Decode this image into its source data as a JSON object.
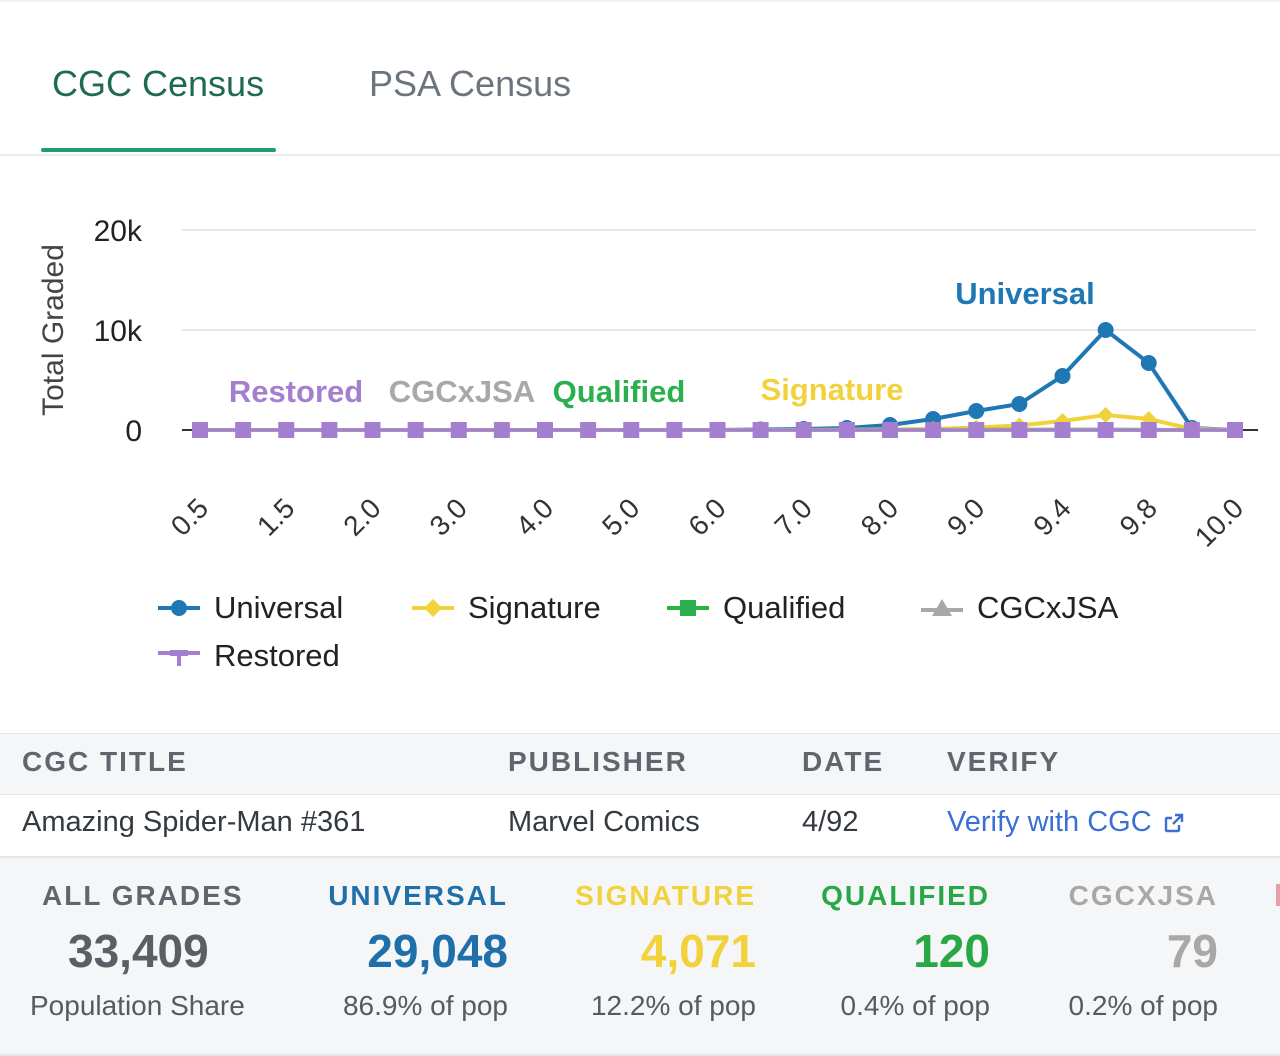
{
  "tabs": [
    {
      "label": "CGC Census",
      "active": true
    },
    {
      "label": "PSA Census",
      "active": false
    }
  ],
  "chart_data": {
    "type": "line",
    "title": "",
    "xlabel": "",
    "ylabel": "Total Graded",
    "ylim": [
      0,
      20000
    ],
    "yticks": [
      {
        "value": 0,
        "label": "0"
      },
      {
        "value": 10000,
        "label": "10k"
      },
      {
        "value": 20000,
        "label": "20k"
      }
    ],
    "x": [
      "0.5",
      "1.0",
      "1.5",
      "1.8",
      "2.0",
      "2.5",
      "3.0",
      "3.5",
      "4.0",
      "4.5",
      "5.0",
      "5.5",
      "6.0",
      "6.5",
      "7.0",
      "7.5",
      "8.0",
      "8.5",
      "9.0",
      "9.2",
      "9.4",
      "9.6",
      "9.8",
      "9.9",
      "10.0"
    ],
    "xtick_labels": [
      "0.5",
      "1.5",
      "2.0",
      "3.0",
      "4.0",
      "5.0",
      "6.0",
      "7.0",
      "8.0",
      "9.0",
      "9.4",
      "9.8",
      "10.0"
    ],
    "grid": true,
    "legend_position": "bottom",
    "series": [
      {
        "name": "Universal",
        "color": "#1f77b4",
        "marker": "circle",
        "values": [
          0,
          0,
          0,
          0,
          0,
          0,
          0,
          0,
          0,
          0,
          0,
          0,
          0,
          50,
          100,
          200,
          500,
          1100,
          1900,
          2600,
          5400,
          10000,
          6700,
          200,
          0
        ],
        "label_at": 21
      },
      {
        "name": "Signature",
        "color": "#f2d23c",
        "marker": "diamond",
        "values": [
          0,
          0,
          0,
          0,
          0,
          0,
          0,
          0,
          0,
          0,
          0,
          0,
          0,
          0,
          10,
          20,
          50,
          100,
          250,
          450,
          900,
          1500,
          1100,
          100,
          0
        ],
        "label_at": 15
      },
      {
        "name": "Qualified",
        "color": "#2ab04c",
        "marker": "square",
        "values": [
          0,
          0,
          0,
          0,
          0,
          0,
          0,
          0,
          0,
          0,
          0,
          0,
          0,
          0,
          0,
          0,
          5,
          10,
          15,
          20,
          25,
          25,
          15,
          5,
          0
        ],
        "label_at": 9
      },
      {
        "name": "CGCxJSA",
        "color": "#a8a8a8",
        "marker": "triangle",
        "values": [
          0,
          0,
          0,
          0,
          0,
          0,
          0,
          0,
          0,
          0,
          0,
          0,
          0,
          0,
          0,
          0,
          0,
          5,
          10,
          15,
          20,
          20,
          10,
          0,
          0
        ],
        "label_at": 6
      },
      {
        "name": "Restored",
        "color": "#a57fcf",
        "marker": "plus",
        "values": [
          0,
          0,
          0,
          0,
          0,
          0,
          0,
          0,
          0,
          0,
          0,
          0,
          0,
          0,
          0,
          0,
          0,
          0,
          0,
          0,
          0,
          0,
          0,
          0,
          0
        ],
        "label_at": 2
      }
    ]
  },
  "legend": [
    {
      "name": "Universal",
      "color": "#1f77b4",
      "marker": "circle"
    },
    {
      "name": "Signature",
      "color": "#f2d23c",
      "marker": "diamond"
    },
    {
      "name": "Qualified",
      "color": "#2ab04c",
      "marker": "square"
    },
    {
      "name": "CGCxJSA",
      "color": "#a8a8a8",
      "marker": "triangle"
    },
    {
      "name": "Restored",
      "color": "#a57fcf",
      "marker": "plus"
    }
  ],
  "table": {
    "headers": {
      "title": "CGC TITLE",
      "publisher": "PUBLISHER",
      "date": "DATE",
      "verify": "VERIFY"
    },
    "row": {
      "title": "Amazing Spider-Man #361",
      "publisher": "Marvel Comics",
      "date": "4/92",
      "verify": "Verify with CGC"
    }
  },
  "stats": [
    {
      "label": "ALL GRADES",
      "value": "33,409",
      "sub": "Population Share",
      "color": "#5f666d",
      "value_color": "#5a5f66",
      "align": "center"
    },
    {
      "label": "UNIVERSAL",
      "value": "29,048",
      "sub": "86.9% of pop",
      "color": "#1f6fa8",
      "value_color": "#1f6fa8",
      "align": "right"
    },
    {
      "label": "SIGNATURE",
      "value": "4,071",
      "sub": "12.2% of pop",
      "color": "#f2d23c",
      "value_color": "#f2d23c",
      "align": "right"
    },
    {
      "label": "QUALIFIED",
      "value": "120",
      "sub": "0.4% of pop",
      "color": "#28a745",
      "value_color": "#28a745",
      "align": "right"
    },
    {
      "label": "CGCXJSA",
      "value": "79",
      "sub": "0.2% of pop",
      "color": "#a8a8a8",
      "value_color": "#a8a8a8",
      "align": "right"
    }
  ]
}
